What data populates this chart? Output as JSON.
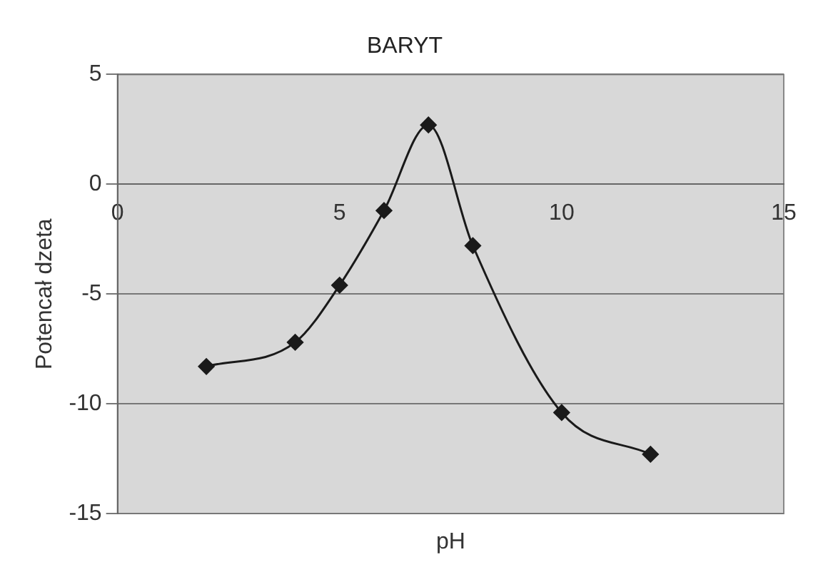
{
  "chart_data": {
    "type": "line",
    "title": "BARYT",
    "xlabel": "pH",
    "ylabel": "Potencał dzeta",
    "x": [
      2,
      4,
      5,
      6,
      7,
      8,
      10,
      12
    ],
    "series": [
      {
        "color": "#1a1a1a",
        "values": [
          -8.3,
          -7.2,
          -4.6,
          -1.2,
          2.7,
          -2.8,
          -10.4,
          -12.3
        ]
      }
    ],
    "xlim": [
      0,
      15
    ],
    "xticks": [
      0,
      5,
      10,
      15
    ],
    "ylim": [
      -15,
      5
    ],
    "yticks": [
      -15,
      -10,
      -5,
      0,
      5
    ],
    "grid": "y",
    "legend": false,
    "marker": "diamond",
    "line_style": "solid"
  }
}
